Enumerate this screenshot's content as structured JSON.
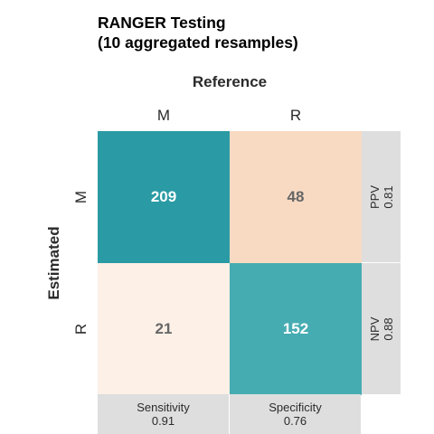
{
  "title_line1": "RANGER Testing",
  "title_line2": "(10 aggregated resamples)",
  "chart_data": {
    "type": "heatmap",
    "title": "RANGER Testing\n(10 aggregated resamples)",
    "column_axis_label": "Reference",
    "row_axis_label": "Estimated",
    "columns": [
      "M",
      "R"
    ],
    "rows": [
      "M",
      "R"
    ],
    "matrix": [
      [
        209,
        48
      ],
      [
        21,
        152
      ]
    ],
    "cells": [
      {
        "row": "M",
        "col": "M",
        "value": 209,
        "label": "209",
        "color": "#2a9ba4",
        "text_color": "#ffffff"
      },
      {
        "row": "M",
        "col": "R",
        "value": 48,
        "label": "48",
        "color": "#f8dac3",
        "text_color": "#666666"
      },
      {
        "row": "R",
        "col": "M",
        "value": 21,
        "label": "21",
        "color": "#fcf0e7",
        "text_color": "#666666"
      },
      {
        "row": "R",
        "col": "R",
        "value": 152,
        "label": "152",
        "color": "#45acb2",
        "text_color": "#ffffff"
      }
    ],
    "row_stats": [
      {
        "name": "PPV",
        "value": "0.81"
      },
      {
        "name": "NPV",
        "value": "0.88"
      }
    ],
    "col_stats": [
      {
        "name": "Sensitivity",
        "value": "0.91"
      },
      {
        "name": "Specificity",
        "value": "0.76"
      }
    ],
    "stat_panel_color": "#dedede"
  }
}
